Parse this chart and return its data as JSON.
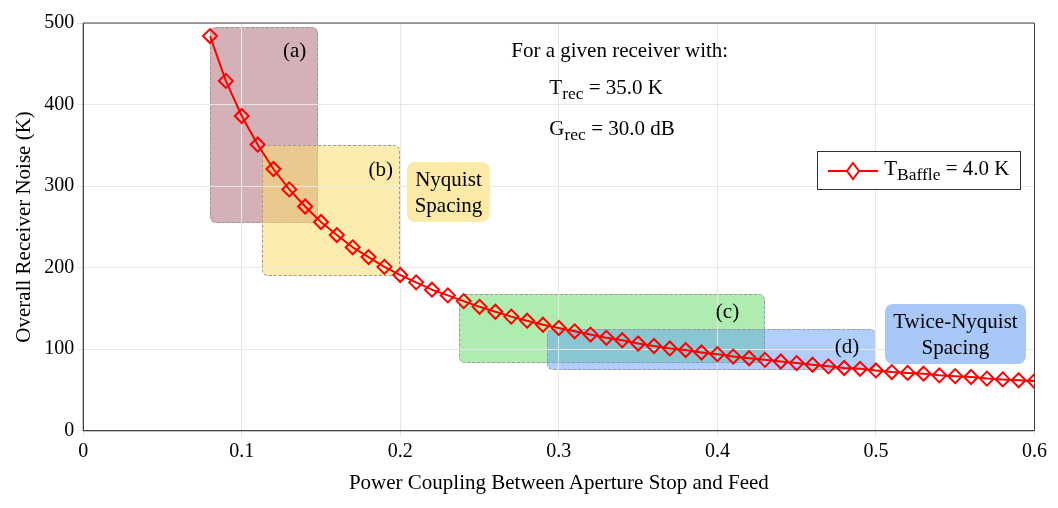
{
  "chart_data": {
    "type": "line",
    "xlabel": "Power Coupling Between Aperture Stop and Feed",
    "ylabel": "Overall Receiver Noise (K)",
    "x": [
      0.08,
      0.09,
      0.1,
      0.11,
      0.12,
      0.13,
      0.14,
      0.15,
      0.16,
      0.17,
      0.18,
      0.19,
      0.2,
      0.21,
      0.22,
      0.23,
      0.24,
      0.25,
      0.26,
      0.27,
      0.28,
      0.29,
      0.3,
      0.31,
      0.32,
      0.33,
      0.34,
      0.35,
      0.36,
      0.37,
      0.38,
      0.39,
      0.4,
      0.41,
      0.42,
      0.43,
      0.44,
      0.45,
      0.46,
      0.47,
      0.48,
      0.49,
      0.5,
      0.51,
      0.52,
      0.53,
      0.54,
      0.55,
      0.56,
      0.57,
      0.58,
      0.59,
      0.6
    ],
    "series": [
      {
        "name": "T$_{Baffle}$ = 4.0 K",
        "color": "#ff0000",
        "values": [
          484,
          429,
          386,
          351,
          321,
          296,
          275,
          256,
          240,
          225,
          213,
          201,
          191,
          182,
          173,
          166,
          159,
          152,
          146,
          140,
          135,
          130,
          126,
          122,
          118,
          114,
          111,
          107,
          104,
          101,
          99,
          96,
          94,
          91,
          89,
          87,
          85,
          83,
          81,
          79,
          77,
          76,
          74,
          72,
          71,
          70,
          68,
          67,
          66,
          64,
          63,
          62,
          61
        ]
      }
    ],
    "marker": "diamond",
    "line_style": "solid",
    "legend": "top right",
    "grid": true,
    "xlim": [
      0,
      0.6
    ],
    "xticks": [
      0,
      0.1,
      0.2,
      0.3,
      0.4,
      0.5,
      0.6
    ],
    "ylim": [
      0,
      500
    ],
    "yticks": [
      0,
      100,
      200,
      300,
      400,
      500
    ],
    "annotations": [
      "For a given receiver with:",
      "T$_{rec}$ = 35.0 K",
      "G$_{rec}$ = 30.0 dB",
      "(a)",
      "(b)",
      "Nyquist\nSpacing",
      "(c)",
      "(d)",
      "Twice-Nyquist\nSpacing"
    ]
  }
}
